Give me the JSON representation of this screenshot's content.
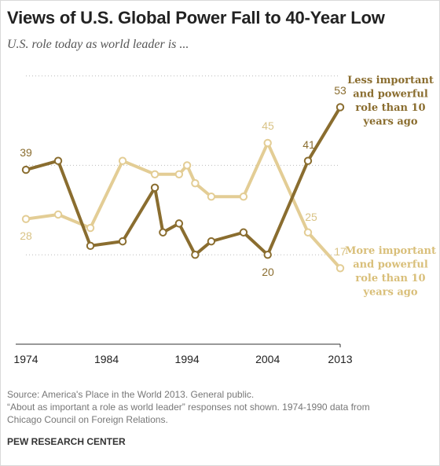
{
  "title": "Views of U.S. Global Power Fall to 40-Year Low",
  "subtitle": "U.S. role today as world leader is ...",
  "colors": {
    "less": "#8a6d2f",
    "more": "#e3cd95",
    "grid": "#bbbbbb",
    "axis": "#333333"
  },
  "chart_data": {
    "type": "line",
    "x": [
      1974,
      1978,
      1982,
      1986,
      1987,
      1990,
      1991,
      1993,
      1994,
      1995,
      1997,
      2001,
      2004,
      2009,
      2013
    ],
    "xticks": [
      "1974",
      "1984",
      "1994",
      "2004",
      "2013"
    ],
    "ylim": [
      0,
      70
    ],
    "grid": "dotted horizontal lines",
    "series": [
      {
        "name": "Less important and powerful role than 10 years ago",
        "legend_lines": [
          "Less important",
          "and powerful",
          "role than 10",
          "years ago"
        ],
        "color": "#8a6d2f",
        "x": [
          1974,
          1978,
          1982,
          1986,
          1990,
          1991,
          1993,
          1995,
          1997,
          2001,
          2004,
          2009,
          2013
        ],
        "values": [
          39,
          41,
          22,
          23,
          35,
          25,
          27,
          20,
          23,
          25,
          20,
          41,
          53
        ],
        "labels": [
          {
            "x": 1974,
            "text": "39"
          },
          {
            "x": 2004,
            "text": "20"
          },
          {
            "x": 2009,
            "text": "41"
          },
          {
            "x": 2013,
            "text": "53"
          }
        ]
      },
      {
        "name": "More important and powerful role than 10 years ago",
        "legend_lines": [
          "More important",
          "and powerful",
          "role than 10",
          "years ago"
        ],
        "color": "#e3cd95",
        "x": [
          1974,
          1978,
          1982,
          1986,
          1990,
          1993,
          1994,
          1995,
          1997,
          2001,
          2004,
          2009,
          2013
        ],
        "values": [
          28,
          29,
          26,
          41,
          38,
          38,
          40,
          36,
          33,
          33,
          45,
          25,
          17
        ],
        "labels": [
          {
            "x": 1974,
            "text": "28"
          },
          {
            "x": 2004,
            "text": "45"
          },
          {
            "x": 2009,
            "text": "25"
          },
          {
            "x": 2013,
            "text": "17"
          }
        ]
      }
    ]
  },
  "source_lines": [
    "Source: America's Place in the World 2013. General public.",
    "“About as important a role as world leader” responses not shown. 1974-1990 data from",
    "Chicago Council on Foreign Relations."
  ],
  "footer": "PEW RESEARCH CENTER"
}
